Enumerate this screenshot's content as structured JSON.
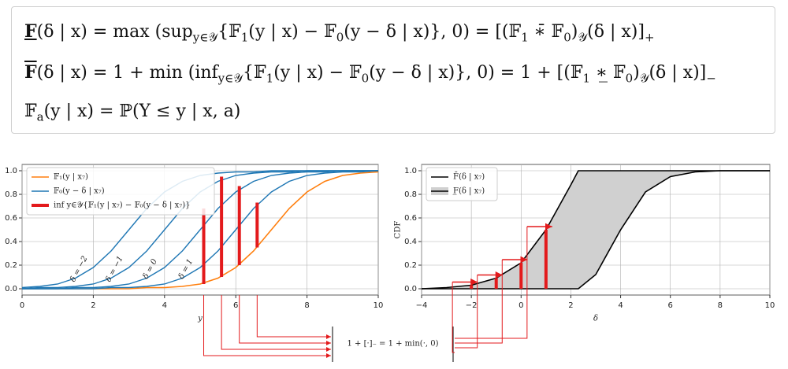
{
  "formulas": [
    [
      "F",
      "(δ | x) = max (sup",
      "y∈𝒴",
      "{𝔽",
      "1",
      "(y | x) − 𝔽",
      "0",
      "(y − δ | x)}, 0) = [(𝔽",
      "1",
      " ∗̄ 𝔽",
      "0",
      ")",
      "𝒴",
      "(δ | x)]",
      "+"
    ],
    [
      "F",
      "(δ | x) = 1 + min (inf",
      "y∈𝒴",
      "{𝔽",
      "1",
      "(y | x) − 𝔽",
      "0",
      "(y − δ | x)}, 0) = 1 + [(𝔽",
      "1",
      " ∗̲ 𝔽",
      "0",
      ")",
      "𝒴",
      "(δ | x)]",
      "−"
    ],
    [
      "𝔽",
      "a",
      "(y | x) = ℙ(Y ≤ y | x, a)"
    ]
  ],
  "annotation": "1 + [·]₋ = 1 + min(·, 0)",
  "chart_data": [
    {
      "type": "line",
      "xlabel": "y",
      "x": [
        0,
        0.5,
        1,
        1.5,
        2,
        2.5,
        3,
        3.5,
        4,
        4.5,
        5,
        5.5,
        6,
        6.5,
        7,
        7.5,
        8,
        8.5,
        9,
        9.5,
        10
      ],
      "xlim": [
        0,
        10
      ],
      "xticks": [
        0,
        2,
        4,
        6,
        8,
        10
      ],
      "ylim": [
        0,
        1.0
      ],
      "yticks": [
        {
          "value": 0,
          "label": "0.0"
        },
        {
          "value": 0.2,
          "label": "0.2"
        },
        {
          "value": 0.4,
          "label": "0.4"
        },
        {
          "value": 0.6,
          "label": "0.6"
        },
        {
          "value": 0.8,
          "label": "0.8"
        },
        {
          "value": 1.0,
          "label": "1.0"
        }
      ],
      "grid": true,
      "legend": "upper left",
      "series": [
        {
          "name": "𝔽₁(y | x₇)",
          "color": "#ff7f0e",
          "values": [
            0,
            0,
            0,
            0,
            0,
            0,
            0,
            0.01,
            0.01,
            0.02,
            0.04,
            0.09,
            0.18,
            0.32,
            0.5,
            0.68,
            0.82,
            0.91,
            0.96,
            0.98,
            0.99
          ]
        },
        {
          "name": "𝔽₀(y − δ | x₇)",
          "color": "#1f77b4",
          "curves": [
            {
              "label": "δ = −2",
              "values": [
                0.01,
                0.02,
                0.04,
                0.09,
                0.18,
                0.32,
                0.5,
                0.68,
                0.82,
                0.91,
                0.96,
                0.98,
                0.99,
                0.99,
                1.0,
                1.0,
                1.0,
                1.0,
                1.0,
                1.0,
                1.0
              ]
            },
            {
              "label": "δ = −1",
              "values": [
                0,
                0.01,
                0.01,
                0.02,
                0.04,
                0.09,
                0.18,
                0.32,
                0.5,
                0.68,
                0.82,
                0.91,
                0.96,
                0.98,
                0.99,
                0.99,
                1.0,
                1.0,
                1.0,
                1.0,
                1.0
              ]
            },
            {
              "label": "δ = 0",
              "values": [
                0,
                0,
                0,
                0.01,
                0.01,
                0.02,
                0.04,
                0.09,
                0.18,
                0.32,
                0.5,
                0.68,
                0.82,
                0.91,
                0.96,
                0.98,
                0.99,
                0.99,
                1.0,
                1.0,
                1.0
              ]
            },
            {
              "label": "δ = 1",
              "values": [
                0,
                0,
                0,
                0,
                0,
                0.01,
                0.01,
                0.02,
                0.04,
                0.09,
                0.18,
                0.32,
                0.5,
                0.68,
                0.82,
                0.91,
                0.96,
                0.98,
                0.99,
                0.99,
                1.0
              ]
            }
          ]
        },
        {
          "name": "inf y∈𝒴{𝔽₁(y | x₇) − 𝔽₀(y − δ | x₇)}",
          "color": "#e31a1c",
          "x": [
            5.1,
            5.6,
            6.1,
            6.6
          ],
          "low": [
            0.04,
            0.1,
            0.2,
            0.35
          ],
          "values": [
            0.68,
            0.95,
            0.87,
            0.73
          ]
        }
      ]
    },
    {
      "type": "line",
      "xlabel": "δ",
      "ylabel": "CDF",
      "x": [
        -4,
        -3,
        -2,
        -1,
        0,
        1,
        2,
        2.3,
        3,
        4,
        5,
        6,
        7,
        8,
        9,
        10
      ],
      "xlim": [
        -4,
        10
      ],
      "xticks": [
        {
          "value": -4,
          "label": "−4"
        },
        {
          "value": -2,
          "label": "−2"
        },
        0,
        2,
        4,
        6,
        8,
        10
      ],
      "ylim": [
        0,
        1.0
      ],
      "yticks": [
        {
          "value": 0,
          "label": "0.0"
        },
        {
          "value": 0.2,
          "label": "0.2"
        },
        {
          "value": 0.4,
          "label": "0.4"
        },
        {
          "value": 0.6,
          "label": "0.6"
        },
        {
          "value": 0.8,
          "label": "0.8"
        },
        {
          "value": 1.0,
          "label": "1.0"
        }
      ],
      "grid": true,
      "legend": "upper left",
      "band_color": "#d0d0d0",
      "series": [
        {
          "name": "F̄(δ | x₇)",
          "color": "#000000",
          "values": [
            0,
            0.01,
            0.03,
            0.09,
            0.22,
            0.5,
            0.88,
            1.0,
            1.0,
            1.0,
            1.0,
            1.0,
            1.0,
            1.0,
            1.0,
            1.0
          ]
        },
        {
          "name": "F̲(δ | x₇)",
          "color": "#000000",
          "values": [
            0,
            0,
            0,
            0,
            0,
            0,
            0,
            0,
            0.12,
            0.5,
            0.82,
            0.95,
            0.99,
            1.0,
            1.0,
            1.0
          ]
        },
        {
          "color": "#e31a1c",
          "x": [
            -2,
            -1,
            0,
            1
          ],
          "values": [
            0.03,
            0.09,
            0.22,
            0.5
          ]
        }
      ]
    }
  ]
}
